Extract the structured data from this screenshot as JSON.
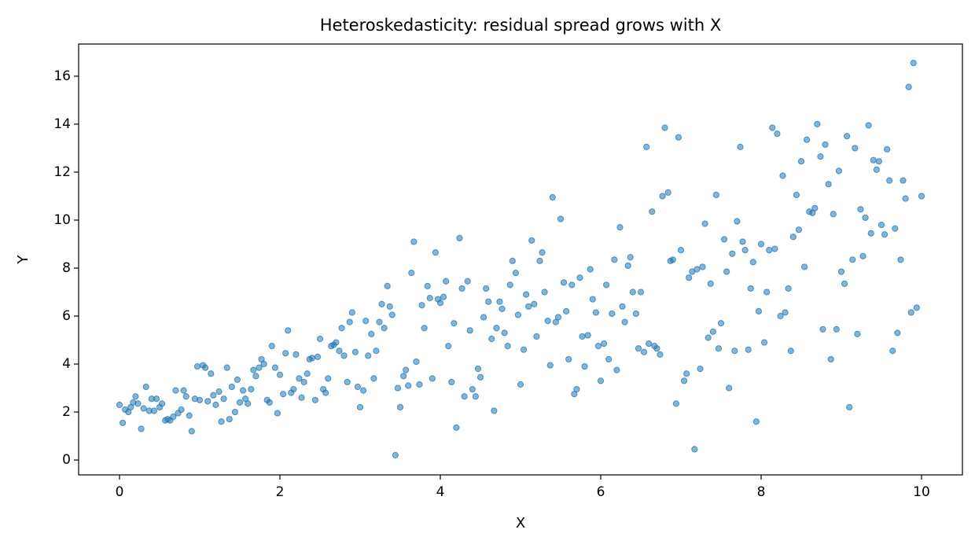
{
  "chart_data": {
    "type": "scatter",
    "title": "Heteroskedasticity: residual spread grows with X",
    "xlabel": "X",
    "ylabel": "Y",
    "color": "#1f77b4",
    "xlim": [
      -0.51,
      10.51
    ],
    "ylim": [
      -0.62,
      17.34
    ],
    "xticks": [
      0,
      2,
      4,
      6,
      8,
      10
    ],
    "yticks": [
      0,
      2,
      4,
      6,
      8,
      10,
      12,
      14,
      16
    ],
    "x": [
      0,
      0.04,
      0.07,
      0.11,
      0.14,
      0.17,
      0.2,
      0.23,
      0.27,
      0.3,
      0.33,
      0.37,
      0.4,
      0.43,
      0.46,
      0.5,
      0.53,
      0.57,
      0.6,
      0.63,
      0.67,
      0.7,
      0.73,
      0.77,
      0.8,
      0.83,
      0.87,
      0.9,
      0.94,
      0.97,
      1.0,
      1.04,
      1.07,
      1.1,
      1.14,
      1.17,
      1.2,
      1.24,
      1.27,
      1.3,
      1.34,
      1.37,
      1.4,
      1.44,
      1.47,
      1.5,
      1.54,
      1.57,
      1.6,
      1.64,
      1.67,
      1.7,
      1.74,
      1.77,
      1.8,
      1.84,
      1.87,
      1.9,
      1.94,
      1.97,
      2.0,
      2.04,
      2.07,
      2.1,
      2.14,
      2.17,
      2.2,
      2.24,
      2.27,
      2.3,
      2.34,
      2.37,
      2.4,
      2.44,
      2.47,
      2.5,
      2.54,
      2.57,
      2.6,
      2.64,
      2.67,
      2.7,
      2.74,
      2.77,
      2.8,
      2.84,
      2.87,
      2.9,
      2.94,
      2.97,
      3.0,
      3.04,
      3.07,
      3.1,
      3.14,
      3.17,
      3.2,
      3.24,
      3.27,
      3.3,
      3.34,
      3.37,
      3.4,
      3.44,
      3.47,
      3.5,
      3.54,
      3.57,
      3.6,
      3.64,
      3.67,
      3.7,
      3.74,
      3.77,
      3.8,
      3.84,
      3.87,
      3.9,
      3.94,
      3.97,
      4.0,
      4.04,
      4.07,
      4.1,
      4.14,
      4.17,
      4.2,
      4.24,
      4.27,
      4.3,
      4.34,
      4.37,
      4.4,
      4.44,
      4.47,
      4.5,
      4.54,
      4.57,
      4.6,
      4.64,
      4.67,
      4.7,
      4.74,
      4.77,
      4.8,
      4.84,
      4.87,
      4.9,
      4.94,
      4.97,
      5.0,
      5.04,
      5.07,
      5.1,
      5.14,
      5.17,
      5.2,
      5.24,
      5.27,
      5.3,
      5.34,
      5.37,
      5.4,
      5.44,
      5.47,
      5.5,
      5.54,
      5.57,
      5.6,
      5.64,
      5.67,
      5.7,
      5.74,
      5.77,
      5.8,
      5.84,
      5.87,
      5.9,
      5.94,
      5.97,
      6.0,
      6.04,
      6.07,
      6.1,
      6.14,
      6.17,
      6.2,
      6.24,
      6.27,
      6.3,
      6.34,
      6.37,
      6.4,
      6.44,
      6.47,
      6.5,
      6.54,
      6.57,
      6.6,
      6.64,
      6.67,
      6.7,
      6.74,
      6.77,
      6.8,
      6.84,
      6.87,
      6.9,
      6.94,
      6.97,
      7.0,
      7.04,
      7.07,
      7.1,
      7.14,
      7.17,
      7.2,
      7.24,
      7.27,
      7.3,
      7.34,
      7.37,
      7.4,
      7.44,
      7.47,
      7.5,
      7.54,
      7.57,
      7.6,
      7.64,
      7.67,
      7.7,
      7.74,
      7.77,
      7.8,
      7.84,
      7.87,
      7.9,
      7.94,
      7.97,
      8.0,
      8.04,
      8.07,
      8.1,
      8.14,
      8.17,
      8.2,
      8.24,
      8.27,
      8.3,
      8.34,
      8.37,
      8.4,
      8.44,
      8.47,
      8.5,
      8.54,
      8.57,
      8.6,
      8.64,
      8.67,
      8.7,
      8.74,
      8.77,
      8.8,
      8.84,
      8.87,
      8.9,
      8.94,
      8.97,
      9.0,
      9.04,
      9.07,
      9.1,
      9.14,
      9.17,
      9.2,
      9.24,
      9.27,
      9.3,
      9.34,
      9.37,
      9.4,
      9.44,
      9.47,
      9.5,
      9.54,
      9.57,
      9.6,
      9.64,
      9.67,
      9.7,
      9.74,
      9.77,
      9.8,
      9.84,
      9.87,
      9.9,
      9.94,
      10.0
    ],
    "y": [
      2.3,
      1.55,
      2.1,
      2.0,
      2.2,
      2.4,
      2.65,
      2.35,
      1.3,
      2.15,
      3.05,
      2.05,
      2.55,
      2.05,
      2.55,
      2.2,
      2.35,
      1.65,
      1.7,
      1.65,
      1.8,
      2.9,
      1.95,
      2.1,
      2.9,
      2.65,
      1.85,
      1.2,
      2.55,
      3.9,
      2.5,
      3.95,
      3.85,
      2.45,
      3.6,
      2.7,
      2.3,
      2.85,
      1.6,
      2.55,
      3.85,
      1.7,
      3.05,
      2.0,
      3.35,
      2.4,
      2.9,
      2.55,
      2.35,
      2.95,
      3.75,
      3.5,
      3.85,
      4.2,
      4.0,
      2.5,
      2.4,
      4.75,
      3.85,
      1.95,
      3.55,
      2.75,
      4.45,
      5.4,
      2.8,
      2.95,
      4.4,
      3.4,
      2.6,
      3.25,
      3.6,
      4.2,
      4.25,
      2.5,
      4.3,
      5.05,
      2.95,
      2.8,
      3.4,
      4.75,
      4.8,
      4.9,
      4.55,
      5.5,
      4.35,
      3.25,
      5.75,
      6.15,
      4.5,
      3.05,
      2.2,
      2.9,
      5.8,
      4.35,
      5.25,
      3.4,
      4.55,
      5.75,
      6.5,
      5.5,
      7.25,
      6.4,
      6.05,
      0.2,
      3.0,
      2.2,
      3.5,
      3.75,
      3.1,
      7.8,
      9.1,
      4.1,
      3.15,
      6.45,
      5.5,
      7.25,
      6.75,
      3.4,
      8.65,
      6.7,
      6.55,
      6.8,
      7.45,
      4.75,
      3.25,
      5.7,
      1.35,
      9.25,
      7.15,
      2.65,
      7.45,
      5.4,
      2.95,
      2.65,
      3.8,
      3.45,
      5.95,
      7.15,
      6.6,
      5.05,
      2.05,
      5.5,
      6.6,
      6.3,
      5.3,
      4.75,
      7.3,
      8.3,
      7.8,
      6.05,
      3.15,
      4.6,
      6.9,
      6.4,
      9.15,
      6.5,
      5.15,
      8.3,
      8.65,
      7.0,
      5.8,
      3.95,
      10.95,
      5.75,
      5.95,
      10.05,
      7.4,
      6.2,
      4.2,
      7.3,
      2.75,
      2.95,
      7.6,
      5.15,
      3.9,
      5.2,
      7.95,
      6.7,
      6.15,
      4.75,
      3.3,
      4.85,
      7.3,
      4.2,
      6.1,
      8.35,
      3.75,
      9.7,
      6.4,
      5.75,
      8.1,
      8.45,
      7.0,
      6.1,
      4.65,
      7.0,
      4.5,
      13.05,
      4.85,
      10.35,
      4.75,
      4.65,
      4.4,
      11.0,
      13.85,
      11.15,
      8.3,
      8.35,
      2.35,
      13.45,
      8.75,
      3.3,
      3.6,
      7.6,
      7.85,
      0.45,
      7.95,
      3.8,
      8.05,
      9.85,
      5.1,
      7.35,
      5.35,
      11.05,
      4.65,
      5.7,
      9.2,
      7.85,
      3.0,
      8.6,
      4.55,
      9.95,
      13.05,
      9.1,
      8.75,
      4.6,
      7.15,
      8.25,
      1.6,
      6.2,
      9.0,
      4.9,
      7.0,
      8.75,
      13.85,
      8.8,
      13.6,
      6.0,
      11.85,
      6.15,
      7.15,
      4.55,
      9.3,
      11.05,
      9.6,
      12.45,
      8.05,
      13.35,
      10.35,
      10.3,
      10.5,
      14.0,
      12.65,
      5.45,
      13.15,
      11.5,
      4.2,
      10.25,
      5.45,
      12.05,
      7.85,
      7.35,
      13.5,
      2.2,
      8.35,
      13.0,
      5.25,
      10.45,
      8.5,
      10.1,
      13.95,
      9.45,
      12.5,
      12.1,
      12.45,
      9.8,
      9.4,
      12.95,
      11.65,
      4.55,
      9.65,
      5.3,
      8.35,
      11.65,
      10.9,
      15.55,
      6.15,
      16.55,
      6.35,
      11.0
    ]
  }
}
